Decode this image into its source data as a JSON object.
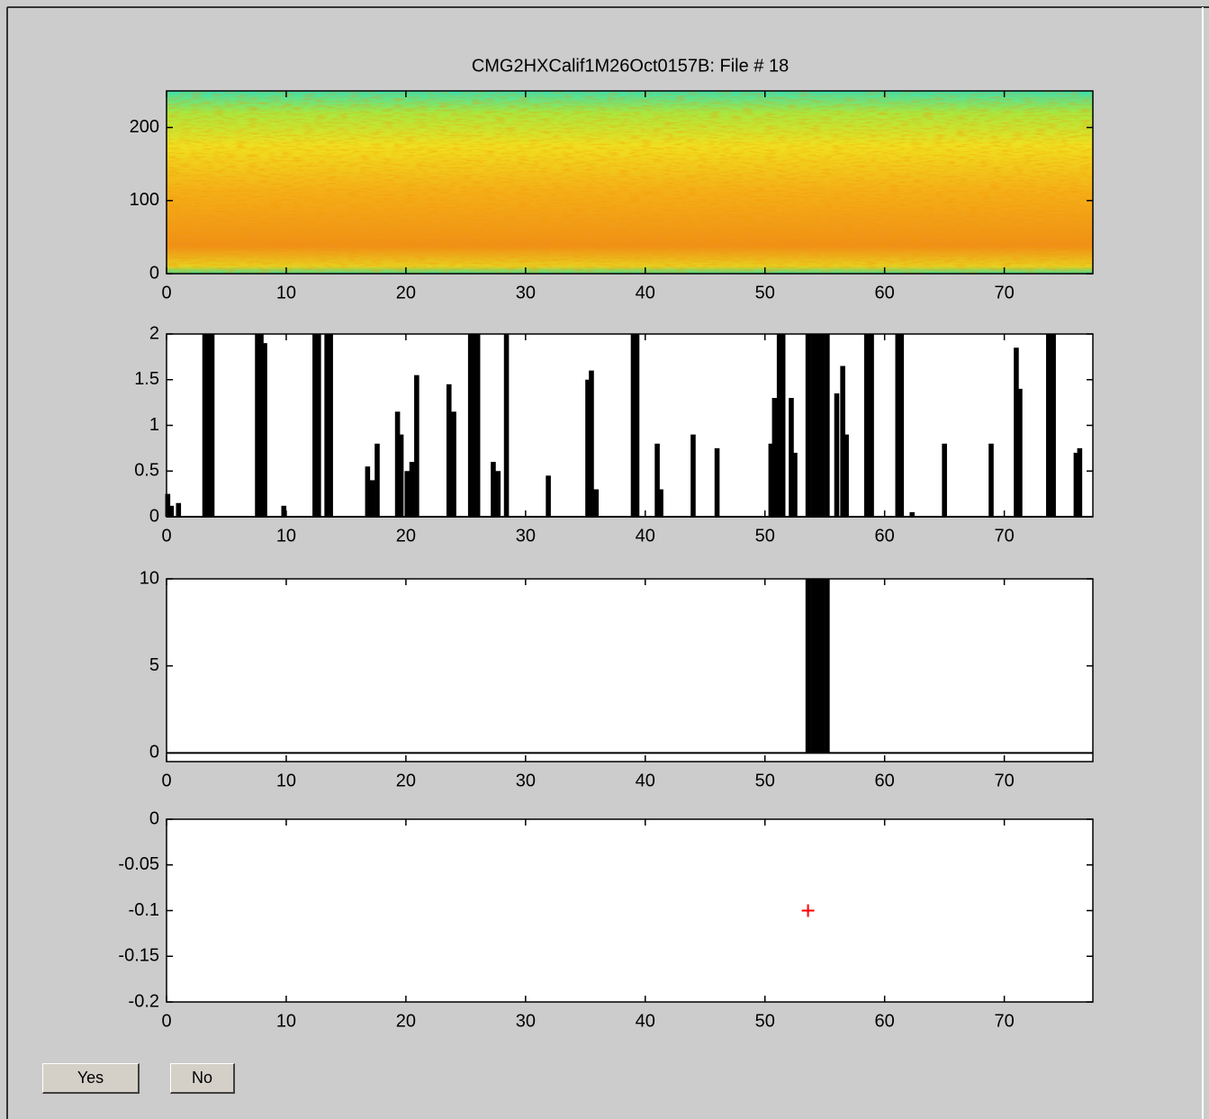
{
  "chart_data": [
    {
      "type": "image",
      "title": "CMG2HXCalif1M26Oct0157B: File # 18",
      "xlim": [
        0,
        77.4
      ],
      "ylim": [
        0,
        250
      ],
      "xticks": [
        0,
        10,
        20,
        30,
        40,
        50,
        60,
        70
      ],
      "yticks": [
        0,
        100,
        200
      ]
    },
    {
      "type": "bar",
      "color": "#000000",
      "x": [
        0.1,
        0.4,
        1.0,
        3.2,
        3.5,
        3.8,
        7.6,
        7.9,
        8.2,
        9.8,
        12.4,
        12.7,
        13.4,
        13.7,
        16.8,
        17.2,
        17.6,
        19.3,
        19.6,
        20.1,
        20.5,
        20.9,
        23.6,
        24.0,
        25.4,
        25.7,
        26.0,
        27.3,
        27.7,
        28.4,
        31.9,
        35.2,
        35.5,
        35.9,
        39.0,
        39.3,
        41.0,
        41.3,
        44.0,
        46.0,
        50.5,
        50.8,
        51.2,
        51.5,
        52.2,
        52.5,
        53.6,
        54.0,
        54.4,
        54.8,
        55.2,
        56.0,
        56.5,
        56.8,
        58.5,
        58.9,
        61.1,
        61.4,
        62.3,
        65.0,
        68.9,
        71.0,
        71.3,
        73.7,
        74.1,
        76.0,
        76.3
      ],
      "values": [
        0.25,
        0.12,
        0.15,
        2,
        2,
        2,
        2,
        2,
        1.9,
        0.12,
        2,
        2,
        2,
        2,
        0.55,
        0.4,
        0.8,
        1.15,
        0.9,
        0.5,
        0.6,
        1.55,
        1.45,
        1.15,
        2,
        2,
        2,
        0.6,
        0.5,
        2,
        0.45,
        1.5,
        1.6,
        0.3,
        2,
        2,
        0.8,
        0.3,
        0.9,
        0.75,
        0.8,
        1.3,
        2,
        2,
        1.3,
        0.7,
        2,
        2,
        2,
        2,
        2,
        1.35,
        1.65,
        0.9,
        2,
        2,
        2,
        2,
        0.05,
        0.8,
        0.8,
        1.85,
        1.4,
        2,
        2,
        0.7,
        0.75
      ],
      "xlim": [
        0,
        77.4
      ],
      "ylim": [
        0,
        2
      ],
      "xticks": [
        0,
        10,
        20,
        30,
        40,
        50,
        60,
        70
      ],
      "yticks": [
        0,
        0.5,
        1,
        1.5,
        2
      ]
    },
    {
      "type": "bar",
      "color": "#000000",
      "x": [
        53.6,
        54.0,
        54.4,
        54.8,
        55.2
      ],
      "values": [
        10,
        10,
        10,
        10,
        10
      ],
      "xlim": [
        0,
        77.4
      ],
      "ylim": [
        -0.5,
        10
      ],
      "xticks": [
        0,
        10,
        20,
        30,
        40,
        50,
        60,
        70
      ],
      "yticks": [
        0,
        5,
        10
      ]
    },
    {
      "type": "scatter",
      "color": "#ff0000",
      "x": [
        53.6
      ],
      "values": [
        -0.1
      ],
      "xlim": [
        0,
        77.4
      ],
      "ylim": [
        -0.2,
        0
      ],
      "xticks": [
        0,
        10,
        20,
        30,
        40,
        50,
        60,
        70
      ],
      "yticks": [
        0,
        -0.05,
        -0.1,
        -0.15,
        -0.2
      ]
    }
  ],
  "buttons": [
    "Yes",
    "No"
  ]
}
